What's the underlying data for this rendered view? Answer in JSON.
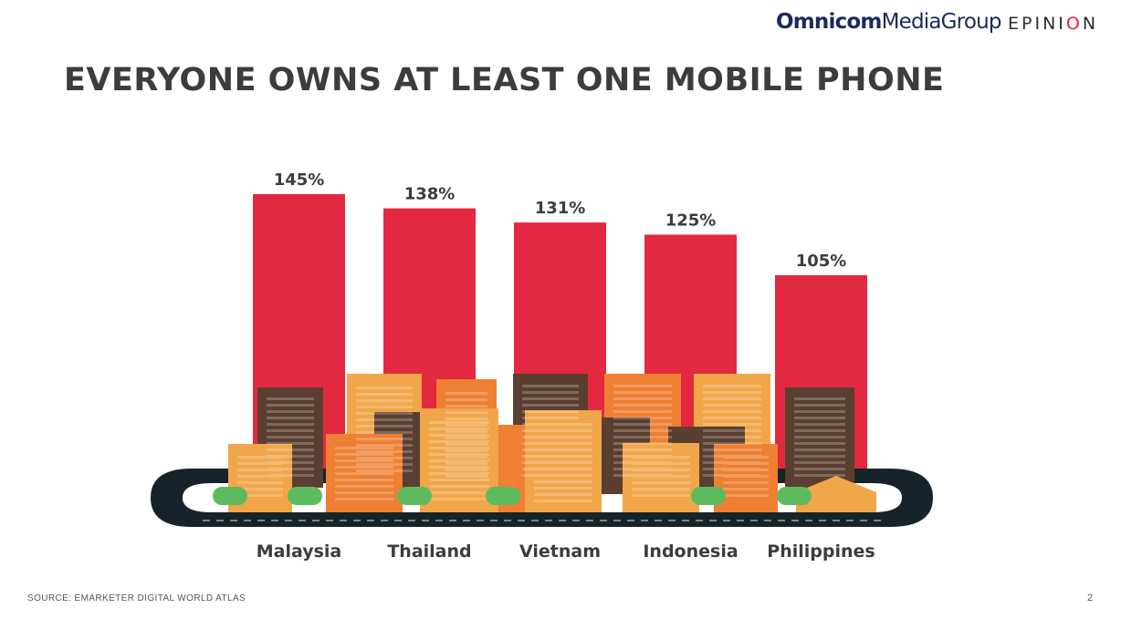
{
  "header": {
    "logo_omnicom_bold": "Omnicom",
    "logo_omnicom_light": "MediaGroup",
    "logo_epinion_a": "EPINI",
    "logo_epinion_o": "O",
    "logo_epinion_b": "N"
  },
  "title": "EVERYONE OWNS AT LEAST ONE MOBILE PHONE",
  "chart_data": {
    "type": "bar",
    "categories": [
      "Malaysia",
      "Thailand",
      "Vietnam",
      "Indonesia",
      "Philippines"
    ],
    "values": [
      145,
      138,
      131,
      125,
      105
    ],
    "value_labels": [
      "145%",
      "138%",
      "131%",
      "125%",
      "105%"
    ],
    "title": "",
    "xlabel": "",
    "ylabel": "",
    "ylim": [
      0,
      145
    ],
    "grid": false,
    "bar_color": "#e3293f"
  },
  "footer": {
    "source": "SOURCE: EMARKETER DIGITAL WORLD ATLAS",
    "page_number": "2"
  },
  "colors": {
    "bar": "#e3293f",
    "road": "#16232b",
    "building_dark": "#5a3f31",
    "building_orange": "#ee7f33",
    "building_light": "#f1a64a",
    "tree": "#5dbb5e",
    "text": "#3c3c3c"
  }
}
